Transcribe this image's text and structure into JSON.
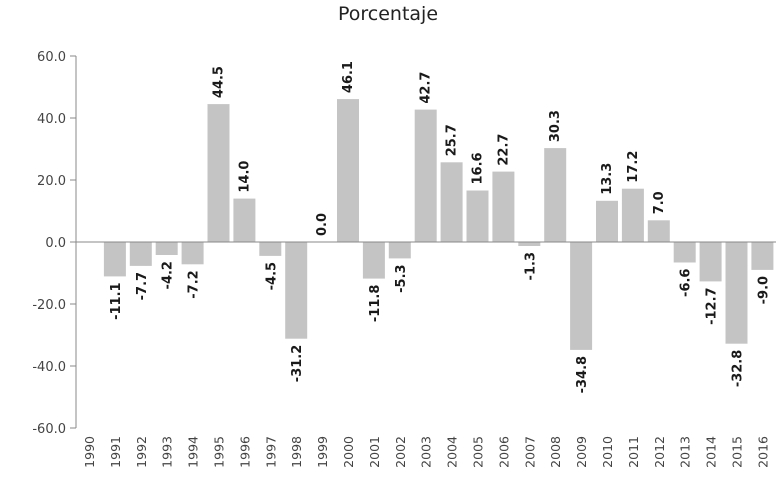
{
  "chart_data": {
    "type": "bar",
    "subtitle": "Porcentaje",
    "categories": [
      "1990",
      "1991",
      "1992",
      "1993",
      "1994",
      "1995",
      "1996",
      "1997",
      "1998",
      "1999",
      "2000",
      "2001",
      "2002",
      "2003",
      "2004",
      "2005",
      "2006",
      "2007",
      "2008",
      "2009",
      "2010",
      "2011",
      "2012",
      "2013",
      "2014",
      "2015",
      "2016"
    ],
    "values": [
      null,
      -11.1,
      -7.7,
      -4.2,
      -7.2,
      44.5,
      14.0,
      -4.5,
      -31.2,
      0.0,
      46.1,
      -11.8,
      -5.3,
      42.7,
      25.7,
      16.6,
      22.7,
      -1.3,
      30.3,
      -34.8,
      13.3,
      17.2,
      7.0,
      -6.6,
      -12.7,
      -32.8,
      -9.0
    ],
    "value_labels": [
      "",
      "-11.1",
      "-7.7",
      "-4.2",
      "-7.2",
      "44.5",
      "14.0",
      "-4.5",
      "-31.2",
      "0.0",
      "46.1",
      "-11.8",
      "-5.3",
      "42.7",
      "25.7",
      "16.6",
      "22.7",
      "-1.3",
      "30.3",
      "-34.8",
      "13.3",
      "17.2",
      "7.0",
      "-6.6",
      "-12.7",
      "-32.8",
      "-9.0"
    ],
    "yticks": [
      "60.0",
      "40.0",
      "20.0",
      "0.0",
      "-20.0",
      "-40.0",
      "-60.0"
    ],
    "ylim": [
      -60,
      60
    ],
    "grid": false,
    "bar_color": "#c4c4c4",
    "axis_color": "#888888"
  }
}
